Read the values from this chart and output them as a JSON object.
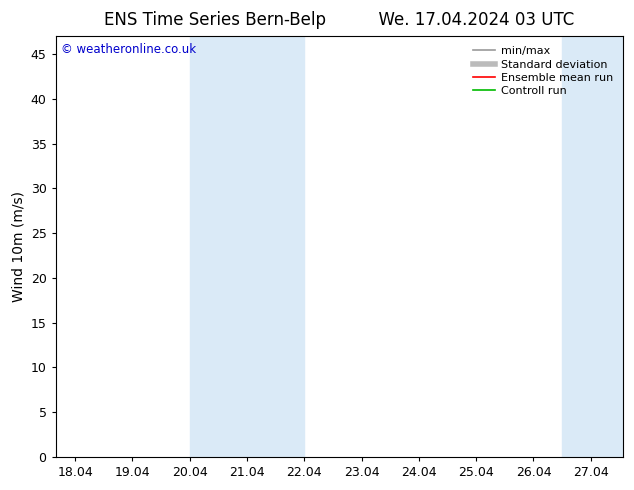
{
  "title_left": "ENS Time Series Bern-Belp",
  "title_right": "We. 17.04.2024 03 UTC",
  "ylabel": "Wind 10m (m/s)",
  "watermark": "© weatheronline.co.uk",
  "watermark_color": "#0000cc",
  "xlim_start": 17.7,
  "xlim_end": 27.6,
  "ylim": [
    0,
    47
  ],
  "yticks": [
    0,
    5,
    10,
    15,
    20,
    25,
    30,
    35,
    40,
    45
  ],
  "xtick_labels": [
    "18.04",
    "19.04",
    "20.04",
    "21.04",
    "22.04",
    "23.04",
    "24.04",
    "25.04",
    "26.04",
    "27.04"
  ],
  "xtick_positions": [
    18.04,
    19.04,
    20.04,
    21.04,
    22.04,
    23.04,
    24.04,
    25.04,
    26.04,
    27.04
  ],
  "shaded_regions": [
    {
      "x_start": 20.04,
      "x_end": 22.04
    },
    {
      "x_start": 26.54,
      "x_end": 27.6
    }
  ],
  "shaded_color": "#daeaf7",
  "bg_color": "#ffffff",
  "plot_bg_color": "#ffffff",
  "legend_entries": [
    {
      "label": "min/max",
      "color": "#999999",
      "lw": 1.2
    },
    {
      "label": "Standard deviation",
      "color": "#bbbbbb",
      "lw": 4
    },
    {
      "label": "Ensemble mean run",
      "color": "#ff0000",
      "lw": 1.2
    },
    {
      "label": "Controll run",
      "color": "#00bb00",
      "lw": 1.2
    }
  ],
  "title_fontsize": 12,
  "tick_fontsize": 9,
  "ylabel_fontsize": 10,
  "legend_fontsize": 8
}
